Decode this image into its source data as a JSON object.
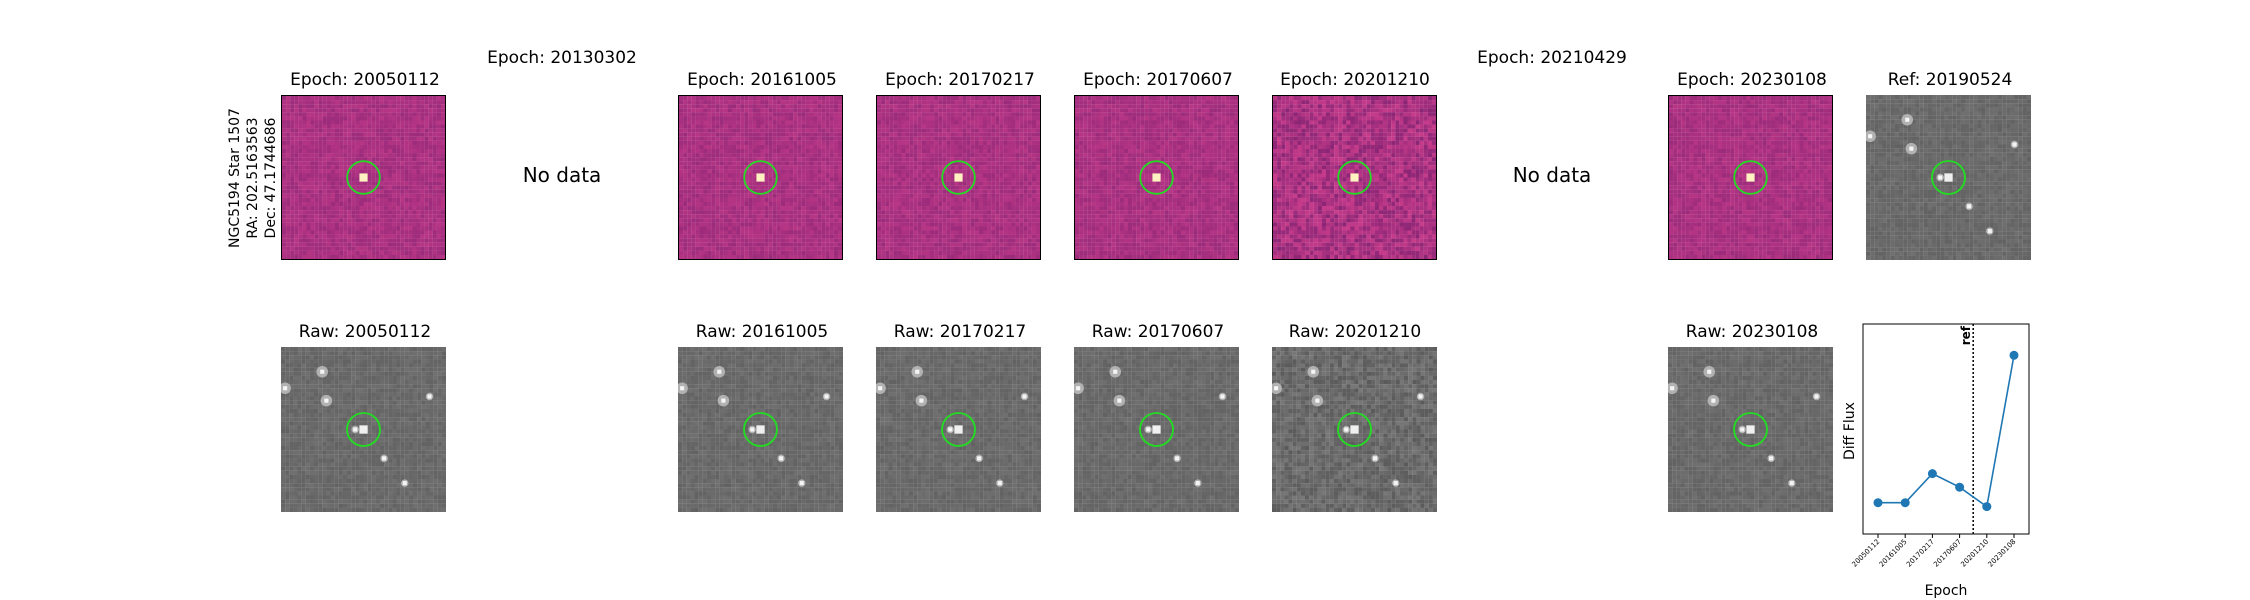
{
  "star": {
    "name": "NGC5194 Star 1507",
    "ra": "RA: 202.5163563",
    "dec": "Dec: 47.1744686"
  },
  "top_row": [
    {
      "label": "Epoch: 20050112",
      "has_data": true,
      "style": "diff"
    },
    {
      "label": "Epoch: 20130302",
      "has_data": false,
      "nodata_text": "No data"
    },
    {
      "label": "Epoch: 20161005",
      "has_data": true,
      "style": "diff"
    },
    {
      "label": "Epoch: 20170217",
      "has_data": true,
      "style": "diff"
    },
    {
      "label": "Epoch: 20170607",
      "has_data": true,
      "style": "diff"
    },
    {
      "label": "Epoch: 20201210",
      "has_data": true,
      "style": "diff-noisy"
    },
    {
      "label": "Epoch: 20210429",
      "has_data": false,
      "nodata_text": "No data"
    },
    {
      "label": "Epoch: 20230108",
      "has_data": true,
      "style": "diff"
    },
    {
      "label": "Ref: 20190524",
      "has_data": true,
      "style": "raw"
    }
  ],
  "bottom_row": [
    {
      "label": "Raw: 20050112"
    },
    {
      "label": "Raw: 20161005"
    },
    {
      "label": "Raw: 20170217"
    },
    {
      "label": "Raw: 20170607"
    },
    {
      "label": "Raw: 20201210"
    },
    {
      "label": "Raw: 20230108"
    }
  ],
  "colors": {
    "marker_circle": "#22dd22",
    "series": "#1f77b4",
    "diff_bg": "#8a2f7a",
    "raw_bg": "#6e6e6e"
  },
  "chart_data": {
    "type": "line",
    "title": "",
    "xlabel": "Epoch",
    "ylabel": "Diff Flux",
    "categories": [
      "20050112",
      "20161005",
      "20170217",
      "20170607",
      "20201210",
      "20230108"
    ],
    "values": [
      0.12,
      0.12,
      0.27,
      0.2,
      0.1,
      0.88
    ],
    "ylim": [
      0,
      1
    ],
    "ref_line": {
      "after_index": 3.5,
      "label": "ref",
      "style": "dotted"
    },
    "grid": false
  }
}
